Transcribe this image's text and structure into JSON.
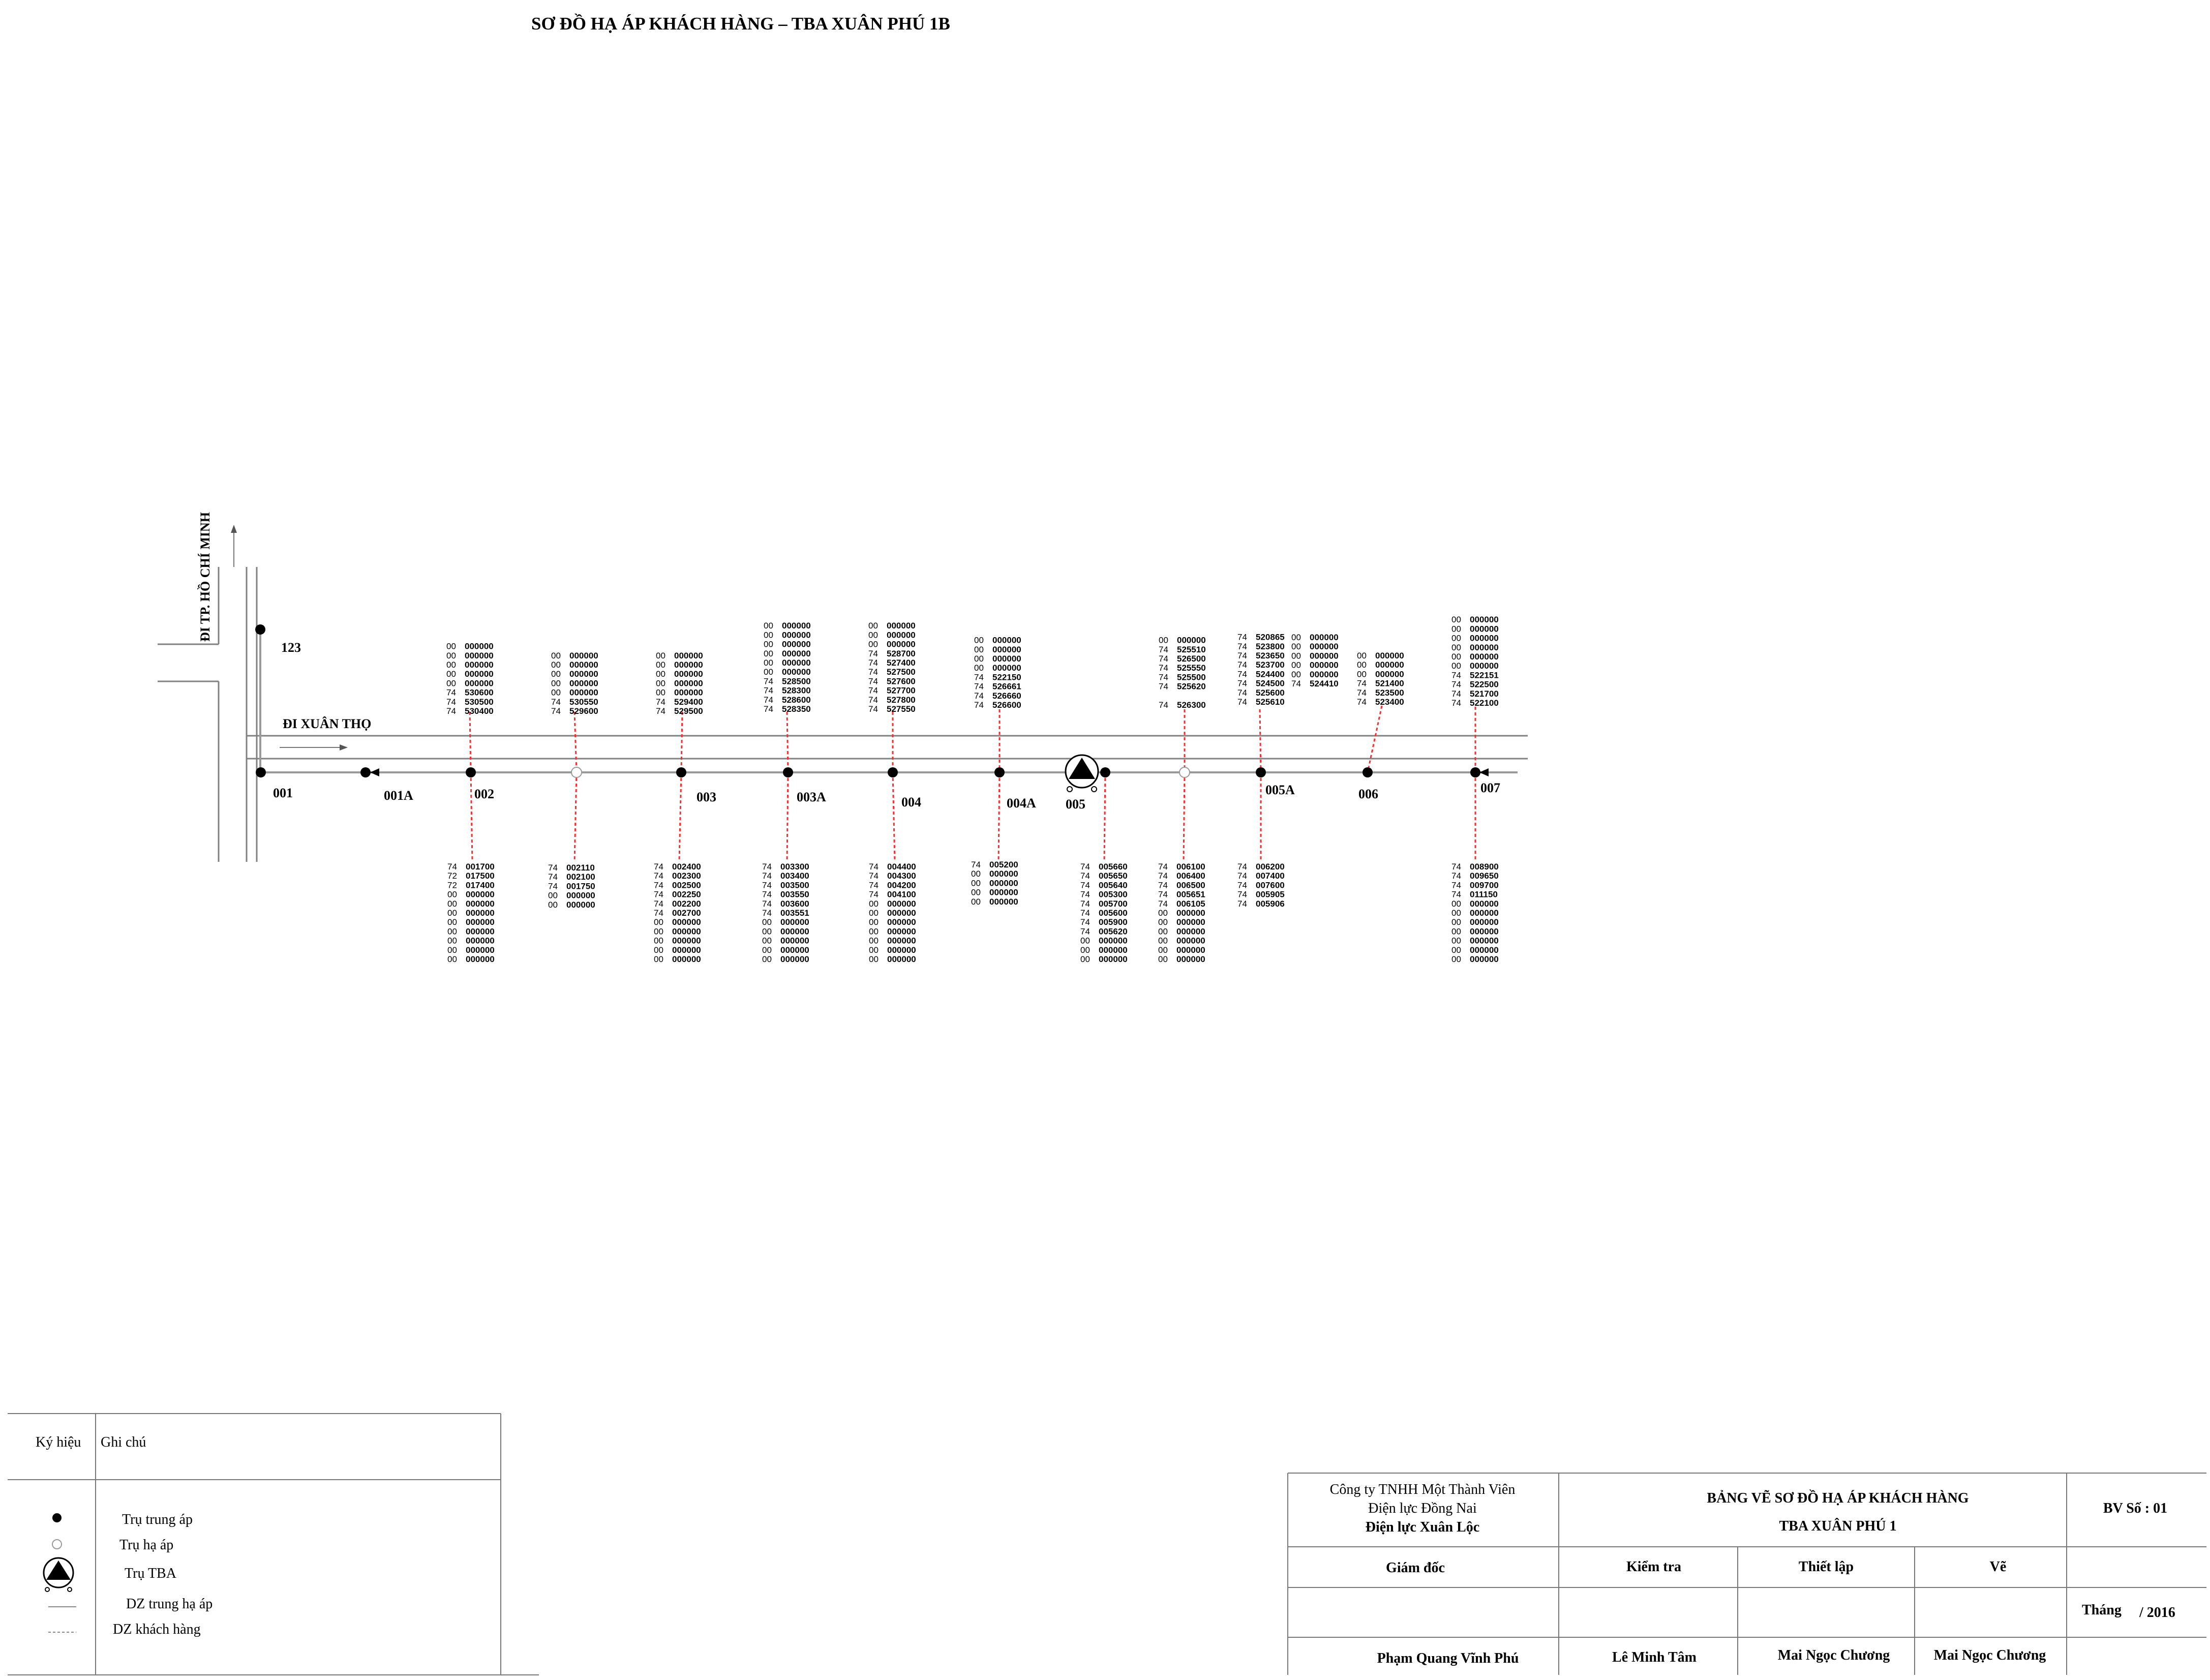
{
  "title": "SƠ ĐỒ HẠ ÁP KHÁCH HÀNG – TBA XUÂN PHÚ 1B",
  "roads": {
    "vertical": "ĐI TP. HỒ CHÍ MINH",
    "horizontal": "ĐI XUÂN THỌ"
  },
  "poles": [
    {
      "label": "123"
    },
    {
      "label": "001"
    },
    {
      "label": "001A"
    },
    {
      "label": "002"
    },
    {
      "label": ""
    },
    {
      "label": "003"
    },
    {
      "label": "003A"
    },
    {
      "label": "004"
    },
    {
      "label": "004A"
    },
    {
      "label": "005"
    },
    {
      "label": ""
    },
    {
      "label": "005A"
    },
    {
      "label": "006"
    },
    {
      "label": "007"
    }
  ],
  "top_groups": [
    [
      [
        "00",
        "000000"
      ],
      [
        "00",
        "000000"
      ],
      [
        "00",
        "000000"
      ],
      [
        "00",
        "000000"
      ],
      [
        "00",
        "000000"
      ],
      [
        "74",
        "530600"
      ],
      [
        "74",
        "530500"
      ],
      [
        "74",
        "530400"
      ]
    ],
    [
      [
        "00",
        "000000"
      ],
      [
        "00",
        "000000"
      ],
      [
        "00",
        "000000"
      ],
      [
        "00",
        "000000"
      ],
      [
        "00",
        "000000"
      ],
      [
        "74",
        "530550"
      ],
      [
        "74",
        "529600"
      ]
    ],
    [
      [
        "00",
        "000000"
      ],
      [
        "00",
        "000000"
      ],
      [
        "00",
        "000000"
      ],
      [
        "00",
        "000000"
      ],
      [
        "00",
        "000000"
      ],
      [
        "74",
        "529400"
      ],
      [
        "74",
        "529500"
      ]
    ],
    [
      [
        "00",
        "000000"
      ],
      [
        "00",
        "000000"
      ],
      [
        "00",
        "000000"
      ],
      [
        "00",
        "000000"
      ],
      [
        "00",
        "000000"
      ],
      [
        "00",
        "000000"
      ],
      [
        "74",
        "528500"
      ],
      [
        "74",
        "528300"
      ],
      [
        "74",
        "528600"
      ],
      [
        "74",
        "528350"
      ]
    ],
    [
      [
        "00",
        "000000"
      ],
      [
        "00",
        "000000"
      ],
      [
        "00",
        "000000"
      ],
      [
        "74",
        "528700"
      ],
      [
        "74",
        "527400"
      ],
      [
        "74",
        "527500"
      ],
      [
        "74",
        "527600"
      ],
      [
        "74",
        "527700"
      ],
      [
        "74",
        "527800"
      ],
      [
        "74",
        "527550"
      ]
    ],
    [
      [
        "00",
        "000000"
      ],
      [
        "00",
        "000000"
      ],
      [
        "00",
        "000000"
      ],
      [
        "00",
        "000000"
      ],
      [
        "74",
        "522150"
      ],
      [
        "74",
        "526661"
      ],
      [
        "74",
        "526660"
      ],
      [
        "74",
        "526600"
      ]
    ],
    [
      [
        "00",
        "000000"
      ],
      [
        "74",
        "525510"
      ],
      [
        "74",
        "526500"
      ],
      [
        "74",
        "525550"
      ],
      [
        "74",
        "525500"
      ],
      [
        "74",
        "525620"
      ],
      [
        "",
        ""
      ],
      [
        "74",
        "526300"
      ]
    ],
    [
      [
        "74",
        "520865"
      ],
      [
        "74",
        "523800"
      ],
      [
        "74",
        "523650"
      ],
      [
        "74",
        "523700"
      ],
      [
        "74",
        "524400"
      ],
      [
        "74",
        "524500"
      ],
      [
        "74",
        "525600"
      ],
      [
        "74",
        "525610"
      ]
    ],
    [
      [
        "00",
        "000000"
      ],
      [
        "00",
        "000000"
      ],
      [
        "00",
        "000000"
      ],
      [
        "00",
        "000000"
      ],
      [
        "00",
        "000000"
      ],
      [
        "74",
        "524410"
      ]
    ],
    [
      [
        "00",
        "000000"
      ],
      [
        "00",
        "000000"
      ],
      [
        "00",
        "000000"
      ],
      [
        "74",
        "521400"
      ],
      [
        "74",
        "523500"
      ],
      [
        "74",
        "523400"
      ]
    ],
    [
      [
        "00",
        "000000"
      ],
      [
        "00",
        "000000"
      ],
      [
        "00",
        "000000"
      ],
      [
        "00",
        "000000"
      ],
      [
        "00",
        "000000"
      ],
      [
        "00",
        "000000"
      ],
      [
        "74",
        "522151"
      ],
      [
        "74",
        "522500"
      ],
      [
        "74",
        "521700"
      ],
      [
        "74",
        "522100"
      ]
    ]
  ],
  "bottom_groups": [
    [
      [
        "74",
        "001700"
      ],
      [
        "72",
        "017500"
      ],
      [
        "72",
        "017400"
      ],
      [
        "00",
        "000000"
      ],
      [
        "00",
        "000000"
      ],
      [
        "00",
        "000000"
      ],
      [
        "00",
        "000000"
      ],
      [
        "00",
        "000000"
      ],
      [
        "00",
        "000000"
      ],
      [
        "00",
        "000000"
      ],
      [
        "00",
        "000000"
      ]
    ],
    [
      [
        "74",
        "002110"
      ],
      [
        "74",
        "002100"
      ],
      [
        "74",
        "001750"
      ],
      [
        "00",
        "000000"
      ],
      [
        "00",
        "000000"
      ]
    ],
    [
      [
        "74",
        "002400"
      ],
      [
        "74",
        "002300"
      ],
      [
        "74",
        "002500"
      ],
      [
        "74",
        "002250"
      ],
      [
        "74",
        "002200"
      ],
      [
        "74",
        "002700"
      ],
      [
        "00",
        "000000"
      ],
      [
        "00",
        "000000"
      ],
      [
        "00",
        "000000"
      ],
      [
        "00",
        "000000"
      ],
      [
        "00",
        "000000"
      ]
    ],
    [
      [
        "74",
        "003300"
      ],
      [
        "74",
        "003400"
      ],
      [
        "74",
        "003500"
      ],
      [
        "74",
        "003550"
      ],
      [
        "74",
        "003600"
      ],
      [
        "74",
        "003551"
      ],
      [
        "00",
        "000000"
      ],
      [
        "00",
        "000000"
      ],
      [
        "00",
        "000000"
      ],
      [
        "00",
        "000000"
      ],
      [
        "00",
        "000000"
      ]
    ],
    [
      [
        "74",
        "004400"
      ],
      [
        "74",
        "004300"
      ],
      [
        "74",
        "004200"
      ],
      [
        "74",
        "004100"
      ],
      [
        "00",
        "000000"
      ],
      [
        "00",
        "000000"
      ],
      [
        "00",
        "000000"
      ],
      [
        "00",
        "000000"
      ],
      [
        "00",
        "000000"
      ],
      [
        "00",
        "000000"
      ],
      [
        "00",
        "000000"
      ]
    ],
    [
      [
        "74",
        "005200"
      ],
      [
        "00",
        "000000"
      ],
      [
        "00",
        "000000"
      ],
      [
        "00",
        "000000"
      ],
      [
        "00",
        "000000"
      ]
    ],
    [
      [
        "74",
        "005660"
      ],
      [
        "74",
        "005650"
      ],
      [
        "74",
        "005640"
      ],
      [
        "74",
        "005300"
      ],
      [
        "74",
        "005700"
      ],
      [
        "74",
        "005600"
      ],
      [
        "74",
        "005900"
      ],
      [
        "74",
        "005620"
      ],
      [
        "00",
        "000000"
      ],
      [
        "00",
        "000000"
      ],
      [
        "00",
        "000000"
      ]
    ],
    [
      [
        "74",
        "006100"
      ],
      [
        "74",
        "006400"
      ],
      [
        "74",
        "006500"
      ],
      [
        "74",
        "005651"
      ],
      [
        "74",
        "006105"
      ],
      [
        "00",
        "000000"
      ],
      [
        "00",
        "000000"
      ],
      [
        "00",
        "000000"
      ],
      [
        "00",
        "000000"
      ],
      [
        "00",
        "000000"
      ],
      [
        "00",
        "000000"
      ]
    ],
    [
      [
        "74",
        "006200"
      ],
      [
        "74",
        "007400"
      ],
      [
        "74",
        "007600"
      ],
      [
        "74",
        "005905"
      ],
      [
        "74",
        "005906"
      ]
    ],
    [
      [
        "74",
        "008900"
      ],
      [
        "74",
        "009650"
      ],
      [
        "74",
        "009700"
      ],
      [
        "74",
        "011150"
      ],
      [
        "00",
        "000000"
      ],
      [
        "00",
        "000000"
      ],
      [
        "00",
        "000000"
      ],
      [
        "00",
        "000000"
      ],
      [
        "00",
        "000000"
      ],
      [
        "00",
        "000000"
      ],
      [
        "00",
        "000000"
      ]
    ]
  ],
  "legend": {
    "col_symbol": "Ký hiệu",
    "col_note": "Ghi chú",
    "items": [
      {
        "icon": "filled-dot-icon",
        "text": "Trụ trung áp"
      },
      {
        "icon": "hollow-dot-icon",
        "text": "Trụ hạ áp"
      },
      {
        "icon": "transformer-icon",
        "text": "Trụ TBA"
      },
      {
        "icon": "solid-line-icon",
        "text": "DZ trung hạ áp"
      },
      {
        "icon": "dashed-line-icon",
        "text": "DZ khách hàng"
      }
    ]
  },
  "title_block": {
    "company_line1": "Công ty TNHH Một Thành Viên",
    "company_line2": "Điện lực Đồng Nai",
    "company_line3": "Điện lực Xuân Lộc",
    "drawing_title": "BẢNG VẼ SƠ ĐỒ HẠ ÁP KHÁCH HÀNG",
    "drawing_subtitle": "TBA XUÂN PHÚ 1",
    "sheet_no": "BV Số : 01",
    "role_director": "Giám đốc",
    "role_check": "Kiểm tra",
    "role_setup": "Thiết lập",
    "role_draw": "Vẽ",
    "month_label": "Tháng",
    "year": "/ 2016",
    "name_director": "Phạm Quang Vĩnh Phú",
    "name_check": "Lê Minh Tâm",
    "name_setup": "Mai Ngọc Chương",
    "name_draw": "Mai Ngọc Chương"
  }
}
